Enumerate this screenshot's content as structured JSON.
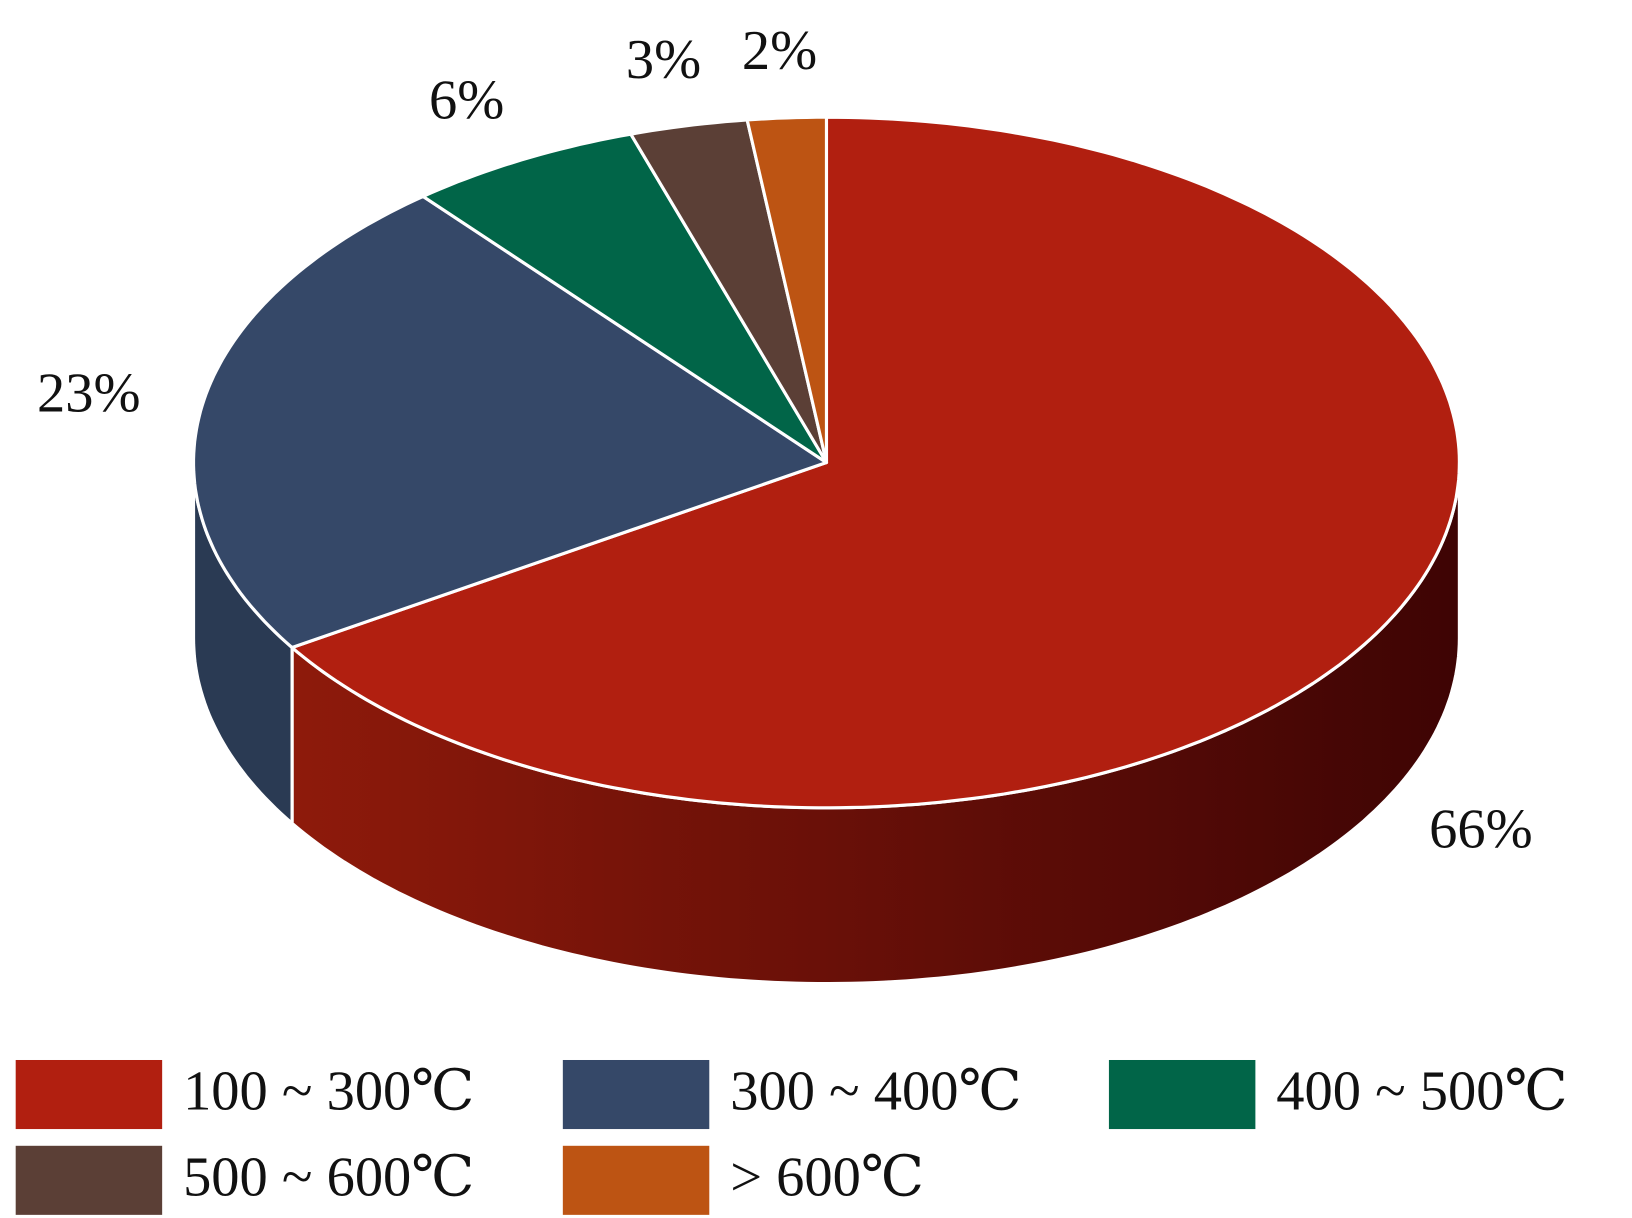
{
  "chart_data": {
    "type": "pie",
    "categories": [
      "100 ~ 300℃",
      "300 ~ 400℃",
      "400 ~ 500℃",
      "500 ~ 600℃",
      "> 600℃"
    ],
    "values": [
      66,
      23,
      6,
      3,
      2
    ],
    "value_labels": [
      "66%",
      "23%",
      "6%",
      "3%",
      "2%"
    ],
    "colors": [
      "#b11f10",
      "#354868",
      "#016548",
      "#5b3f36",
      "#bd5413"
    ],
    "legend": "bottom"
  }
}
